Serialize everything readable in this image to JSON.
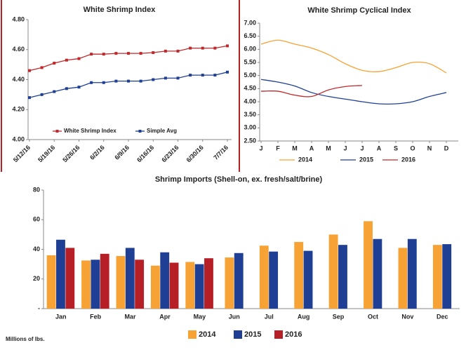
{
  "chart_data": [
    {
      "type": "line",
      "title": "White Shrimp Index",
      "categories": [
        "5/12/16",
        null,
        "5/19/16",
        null,
        "5/26/16",
        null,
        "6/2/16",
        null,
        "6/9/16",
        null,
        "6/16/16",
        null,
        "6/23/16",
        null,
        "6/30/16",
        null,
        "7/7/16"
      ],
      "series": [
        {
          "name": "White Shrimp Index",
          "color": "#c0292b",
          "values": [
            4.46,
            4.48,
            4.51,
            4.53,
            4.54,
            4.57,
            4.57,
            4.575,
            4.575,
            4.575,
            4.58,
            4.59,
            4.59,
            4.61,
            4.61,
            4.61,
            4.625
          ]
        },
        {
          "name": "Simple Avg",
          "color": "#1f3f94",
          "values": [
            4.28,
            4.3,
            4.32,
            4.34,
            4.35,
            4.38,
            4.38,
            4.39,
            4.39,
            4.39,
            4.4,
            4.41,
            4.41,
            4.43,
            4.43,
            4.43,
            4.45
          ]
        }
      ],
      "markers": true,
      "ylim": [
        4.0,
        4.8
      ],
      "yticks": [
        {
          "value": 4.0,
          "label": "4.00"
        },
        {
          "value": 4.2,
          "label": "4.20"
        },
        {
          "value": 4.4,
          "label": "4.40"
        },
        {
          "value": 4.6,
          "label": "4.60"
        },
        {
          "value": 4.8,
          "label": "4.80"
        }
      ],
      "grid": false,
      "legend": "bottom"
    },
    {
      "type": "line",
      "title": "White Shrimp Cyclical Index",
      "categories": [
        "J",
        "F",
        "M",
        "A",
        "M",
        "J",
        "J",
        "A",
        "S",
        "O",
        "N",
        "D"
      ],
      "series": [
        {
          "name": "2014",
          "color": "#f7a234",
          "values": [
            6.2,
            6.35,
            6.2,
            6.05,
            5.8,
            5.45,
            5.2,
            5.15,
            5.3,
            5.5,
            5.45,
            5.1
          ]
        },
        {
          "name": "2015",
          "color": "#1f3f94",
          "values": [
            4.85,
            4.75,
            4.6,
            4.35,
            4.2,
            4.1,
            4.0,
            3.92,
            3.92,
            4.0,
            4.2,
            4.35
          ]
        },
        {
          "name": "2016",
          "color": "#c0292b",
          "values": [
            4.4,
            4.4,
            4.25,
            4.2,
            4.45,
            4.58,
            4.62,
            null,
            null,
            null,
            null,
            null
          ]
        }
      ],
      "markers": false,
      "ylim": [
        2.5,
        7.0
      ],
      "yticks": [
        {
          "value": 2.5,
          "label": "2.50"
        },
        {
          "value": 3.0,
          "label": "3.00"
        },
        {
          "value": 3.5,
          "label": "3.50"
        },
        {
          "value": 4.0,
          "label": "4.00"
        },
        {
          "value": 4.5,
          "label": "4.50"
        },
        {
          "value": 5.0,
          "label": "5.00"
        },
        {
          "value": 5.5,
          "label": "5.50"
        },
        {
          "value": 6.0,
          "label": "6.00"
        },
        {
          "value": 6.5,
          "label": "6.50"
        },
        {
          "value": 7.0,
          "label": "7.00"
        }
      ],
      "grid": false,
      "legend": "bottom"
    },
    {
      "type": "bar",
      "title": "Shrimp Imports (Shell-on, ex. fresh/salt/brine)",
      "ylabel": "Millions of lbs.",
      "categories": [
        "Jan",
        "Feb",
        "Mar",
        "Apr",
        "May",
        "Jun",
        "Jul",
        "Aug",
        "Sep",
        "Oct",
        "Nov",
        "Dec"
      ],
      "series": [
        {
          "name": "2014",
          "color": "#f7a234",
          "values": [
            36,
            32.5,
            35.5,
            29,
            31.5,
            34.5,
            42.5,
            45,
            50,
            59,
            41,
            43
          ]
        },
        {
          "name": "2015",
          "color": "#1f3f94",
          "values": [
            46.5,
            33,
            41,
            38,
            30,
            37.5,
            38.5,
            39,
            43,
            47,
            47,
            43.5
          ]
        },
        {
          "name": "2016",
          "color": "#b51f25",
          "values": [
            41,
            37,
            33,
            31,
            34,
            null,
            null,
            null,
            null,
            null,
            null,
            null
          ]
        }
      ],
      "ylim": [
        0,
        80
      ],
      "yticks": [
        {
          "value": 0,
          "label": "-"
        },
        20,
        40,
        60,
        80
      ],
      "grid": false,
      "legend": "bottom"
    }
  ]
}
